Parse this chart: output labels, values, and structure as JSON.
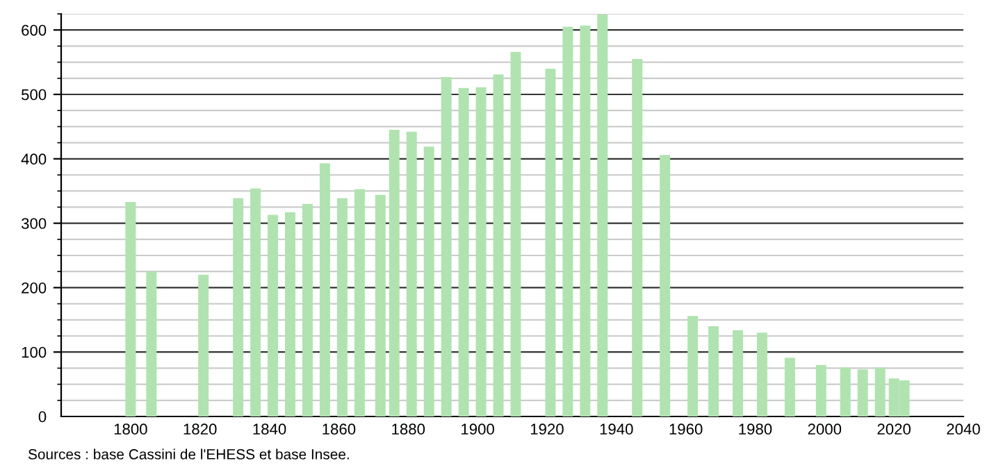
{
  "chart_data": {
    "type": "bar",
    "x": [
      1800,
      1806,
      1821,
      1831,
      1836,
      1841,
      1846,
      1851,
      1856,
      1861,
      1866,
      1872,
      1876,
      1881,
      1886,
      1891,
      1896,
      1901,
      1906,
      1911,
      1921,
      1926,
      1931,
      1936,
      1946,
      1954,
      1962,
      1968,
      1975,
      1982,
      1990,
      1999,
      2006,
      2011,
      2016,
      2020,
      2023
    ],
    "values": [
      333,
      225,
      220,
      339,
      354,
      313,
      317,
      330,
      393,
      339,
      353,
      344,
      445,
      442,
      419,
      527,
      510,
      511,
      531,
      566,
      540,
      605,
      607,
      624,
      555,
      406,
      156,
      140,
      134,
      130,
      91,
      80,
      76,
      73,
      76,
      59,
      56
    ],
    "color": "#b0e3b0",
    "xlim": [
      1780,
      2040
    ],
    "xticks": [
      1800,
      1820,
      1840,
      1860,
      1880,
      1900,
      1920,
      1940,
      1960,
      1980,
      2000,
      2020,
      2040
    ],
    "ylim": [
      0,
      625
    ],
    "yticks": [
      0,
      100,
      200,
      300,
      400,
      500,
      600
    ],
    "grid": "y",
    "annotations": [
      "Sources : base Cassini de l'EHESS et base Insee."
    ]
  }
}
